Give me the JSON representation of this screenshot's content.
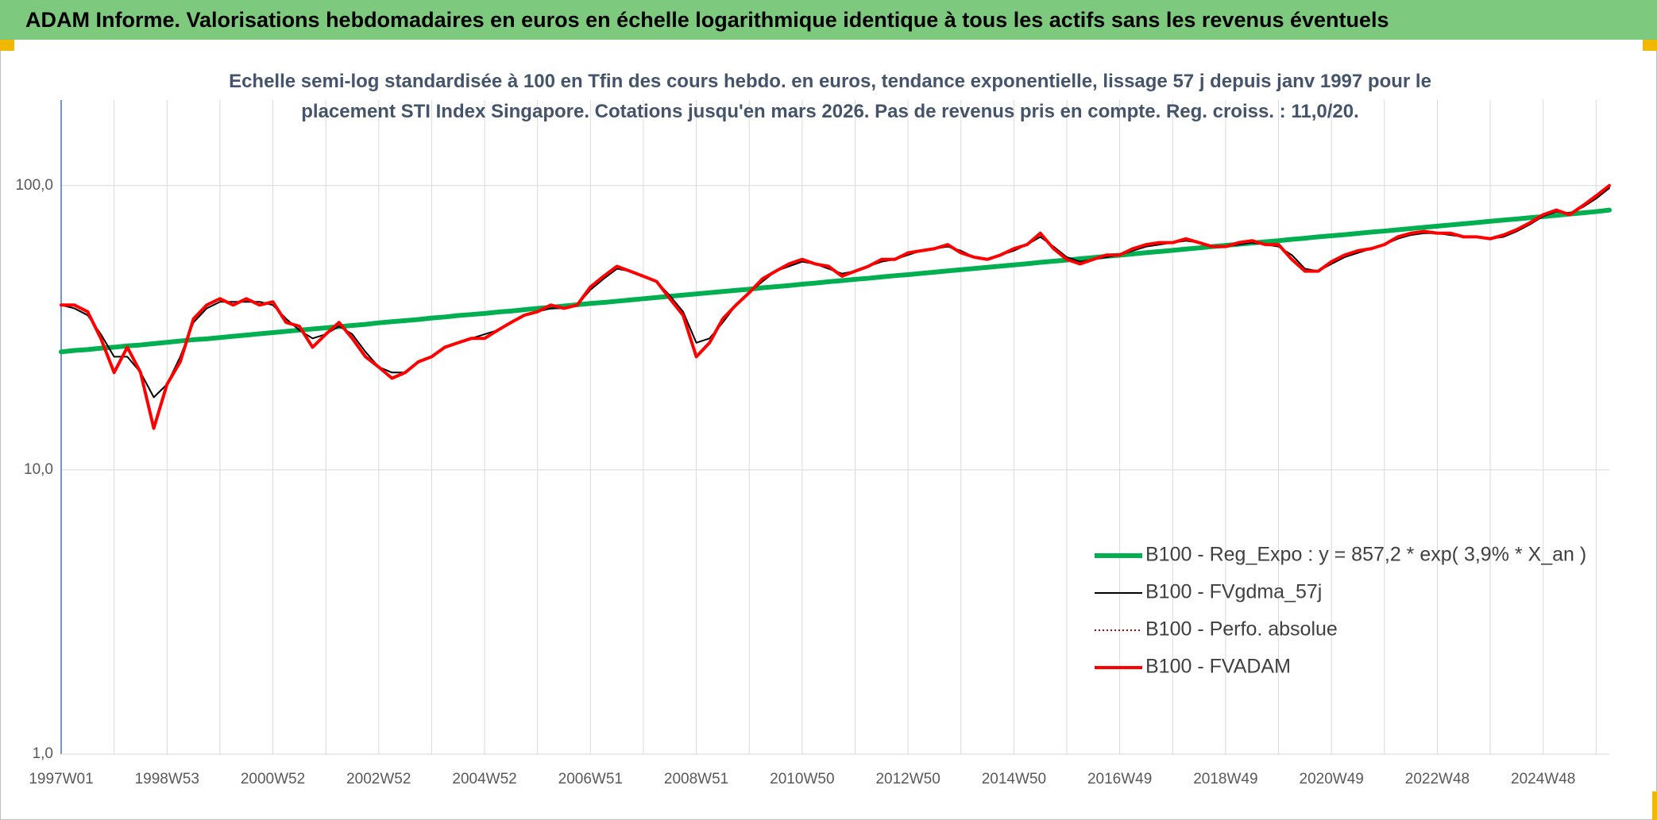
{
  "chart_data": {
    "type": "line",
    "title": "ADAM Informe. Valorisations hebdomadaires en euros en échelle logarithmique identique à tous les actifs sans les revenus éventuels",
    "subtitle": "Echelle semi-log standardisée à 100 en Tfin des cours hebdo. en euros, tendance exponentielle, lissage 57 j depuis janv 1997 pour le placement STI Index Singapore. Cotations jusqu'en mars 2026. Pas de revenus pris en compte. Reg. croiss. : 11,0/20.",
    "categories": [
      "1997W01",
      null,
      null,
      null,
      null,
      null,
      null,
      null,
      "1998W53",
      null,
      null,
      null,
      null,
      null,
      null,
      null,
      "2000W52",
      null,
      null,
      null,
      null,
      null,
      null,
      null,
      "2002W52",
      null,
      null,
      null,
      null,
      null,
      null,
      null,
      "2004W52",
      null,
      null,
      null,
      null,
      null,
      null,
      null,
      "2006W51",
      null,
      null,
      null,
      null,
      null,
      null,
      null,
      "2008W51",
      null,
      null,
      null,
      null,
      null,
      null,
      null,
      "2010W50",
      null,
      null,
      null,
      null,
      null,
      null,
      null,
      "2012W50",
      null,
      null,
      null,
      null,
      null,
      null,
      null,
      "2014W50",
      null,
      null,
      null,
      null,
      null,
      null,
      null,
      "2016W49",
      null,
      null,
      null,
      null,
      null,
      null,
      null,
      "2018W49",
      null,
      null,
      null,
      null,
      null,
      null,
      null,
      "2020W49",
      null,
      null,
      null,
      null,
      null,
      null,
      null,
      "2022W48",
      null,
      null,
      null,
      null,
      null,
      null,
      null,
      "2024W48",
      null,
      null,
      null,
      null,
      null
    ],
    "series": [
      {
        "name": "B100 - Reg_Expo : y = 857,2 * exp( 3,9% *  X_an )",
        "color": "#00b050",
        "width": 6,
        "values": [
          26.0,
          26.3,
          26.5,
          26.8,
          27.0,
          27.3,
          27.5,
          27.8,
          28.1,
          28.4,
          28.7,
          28.9,
          29.2,
          29.5,
          29.8,
          30.1,
          30.4,
          30.7,
          31.0,
          31.3,
          31.6,
          31.9,
          32.2,
          32.5,
          32.9,
          33.2,
          33.5,
          33.8,
          34.2,
          34.5,
          34.9,
          35.2,
          35.5,
          35.9,
          36.2,
          36.6,
          37.0,
          37.3,
          37.7,
          38.1,
          38.5,
          38.8,
          39.2,
          39.6,
          40.0,
          40.4,
          40.8,
          41.2,
          41.6,
          42.0,
          42.4,
          42.8,
          43.2,
          43.7,
          44.1,
          44.5,
          45.0,
          45.4,
          45.9,
          46.3,
          46.8,
          47.2,
          47.7,
          48.2,
          48.6,
          49.1,
          49.6,
          50.1,
          50.6,
          51.1,
          51.6,
          52.1,
          52.6,
          53.1,
          53.7,
          54.2,
          54.7,
          55.3,
          55.8,
          56.4,
          56.9,
          57.5,
          58.1,
          58.6,
          59.2,
          59.8,
          60.4,
          61.0,
          61.6,
          62.2,
          62.8,
          63.4,
          64.0,
          64.7,
          65.3,
          66.0,
          66.6,
          67.2,
          67.9,
          68.6,
          69.2,
          69.9,
          70.6,
          71.3,
          72.0,
          72.7,
          73.4,
          74.1,
          74.9,
          75.6,
          76.3,
          77.1,
          77.8,
          78.6,
          79.4,
          80.2,
          81.0,
          82.0
        ]
      },
      {
        "name": "B100 - FVgdma_57j",
        "color": "#000000",
        "width": 2,
        "values": [
          38,
          37,
          35,
          30,
          25,
          25,
          22,
          18,
          20,
          25,
          33,
          37,
          39,
          39,
          39,
          39,
          38,
          34,
          31,
          29,
          30,
          32,
          30,
          26,
          23,
          22,
          22,
          24,
          25,
          27,
          28,
          29,
          30,
          31,
          33,
          35,
          36,
          37,
          37,
          38,
          43,
          47,
          51,
          50,
          48,
          46,
          41,
          36,
          28,
          29,
          33,
          38,
          42,
          46,
          50,
          52,
          54,
          53,
          51,
          49,
          50,
          52,
          54,
          55,
          57,
          59,
          60,
          61,
          59,
          56,
          55,
          57,
          59,
          62,
          66,
          61,
          56,
          54,
          55,
          56,
          57,
          59,
          61,
          62,
          63,
          64,
          63,
          61,
          61,
          62,
          63,
          62,
          61,
          57,
          51,
          50,
          53,
          56,
          58,
          60,
          62,
          65,
          67,
          68,
          68,
          67,
          66,
          66,
          65,
          66,
          69,
          73,
          78,
          81,
          80,
          84,
          90,
          98
        ]
      },
      {
        "name": "B100 - Perfo. absolue",
        "color": "#c00000",
        "width": 2,
        "dotted": true,
        "values": [
          38,
          38,
          36,
          29,
          22,
          27,
          22,
          14,
          20,
          24,
          34,
          38,
          40,
          38,
          40,
          38,
          39,
          33,
          32,
          27,
          30,
          33,
          29,
          25,
          23,
          21,
          22,
          24,
          25,
          27,
          28,
          29,
          29,
          31,
          33,
          35,
          36,
          38,
          37,
          38,
          44,
          48,
          52,
          50,
          48,
          46,
          40,
          35,
          25,
          28,
          34,
          38,
          42,
          47,
          50,
          53,
          55,
          53,
          52,
          48,
          50,
          52,
          55,
          55,
          58,
          59,
          60,
          62,
          58,
          56,
          55,
          57,
          60,
          62,
          68,
          60,
          55,
          53,
          55,
          57,
          57,
          60,
          62,
          63,
          63,
          65,
          63,
          61,
          61,
          63,
          64,
          62,
          62,
          55,
          50,
          50,
          54,
          57,
          59,
          60,
          62,
          66,
          68,
          69,
          68,
          68,
          66,
          66,
          65,
          67,
          70,
          74,
          79,
          82,
          79,
          85,
          92,
          100
        ]
      },
      {
        "name": "B100 - FVADAM",
        "color": "#ff0000",
        "width": 4,
        "values": [
          38,
          38,
          36,
          29,
          22,
          27,
          22,
          14,
          20,
          24,
          34,
          38,
          40,
          38,
          40,
          38,
          39,
          33,
          32,
          27,
          30,
          33,
          29,
          25,
          23,
          21,
          22,
          24,
          25,
          27,
          28,
          29,
          29,
          31,
          33,
          35,
          36,
          38,
          37,
          38,
          44,
          48,
          52,
          50,
          48,
          46,
          40,
          35,
          25,
          28,
          34,
          38,
          42,
          47,
          50,
          53,
          55,
          53,
          52,
          48,
          50,
          52,
          55,
          55,
          58,
          59,
          60,
          62,
          58,
          56,
          55,
          57,
          60,
          62,
          68,
          60,
          55,
          53,
          55,
          57,
          57,
          60,
          62,
          63,
          63,
          65,
          63,
          61,
          61,
          63,
          64,
          62,
          62,
          55,
          50,
          50,
          54,
          57,
          59,
          60,
          62,
          66,
          68,
          69,
          68,
          68,
          66,
          66,
          65,
          67,
          70,
          74,
          79,
          82,
          79,
          85,
          92,
          100
        ]
      }
    ],
    "log_scale": true,
    "ylim": [
      1,
      200
    ],
    "yticks": [
      {
        "value": 1,
        "label": "1,0"
      },
      {
        "value": 10,
        "label": "10,0"
      },
      {
        "value": 100,
        "label": "100,0"
      }
    ],
    "grid": true,
    "legend": "lower right"
  }
}
